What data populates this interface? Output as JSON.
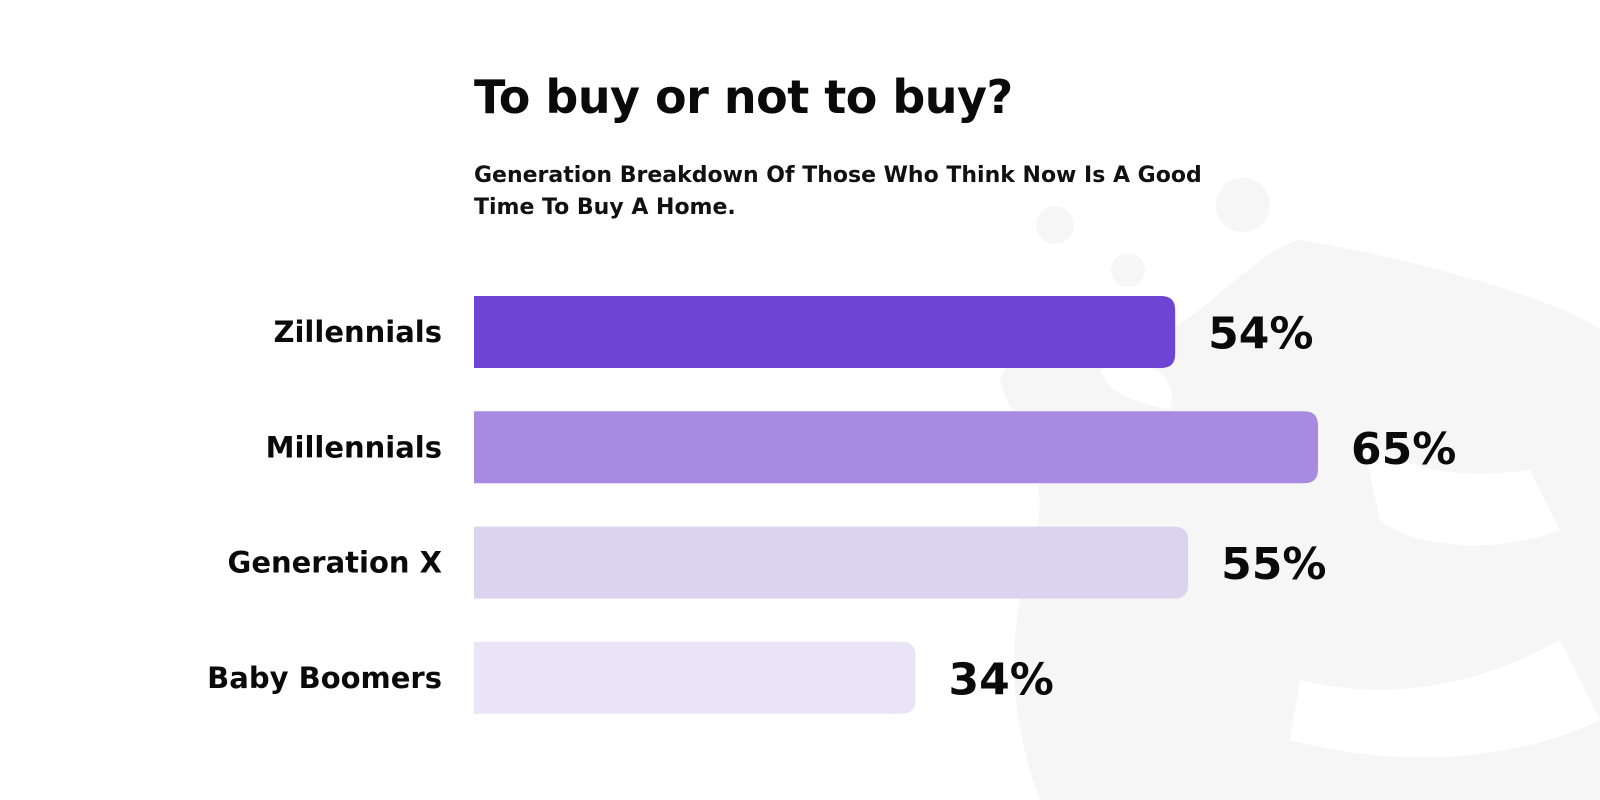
{
  "header": {
    "title": "To buy or not to buy?",
    "subtitle": "Generation Breakdown Of Those Who Think Now Is A Good Time To Buy A Home."
  },
  "chart_data": {
    "type": "bar",
    "orientation": "horizontal",
    "title": "To buy or not to buy?",
    "subtitle": "Generation Breakdown Of Those Who Think Now Is A Good Time To Buy A Home.",
    "categories": [
      "Zillennials",
      "Millennials",
      "Generation X",
      "Baby Boomers"
    ],
    "values": [
      54,
      65,
      55,
      34
    ],
    "value_labels": [
      "54%",
      "65%",
      "55%",
      "34%"
    ],
    "unit": "%",
    "colors": [
      "#6e44d4",
      "#a68be0",
      "#dcd3ef",
      "#e9e4f6"
    ],
    "xlim": [
      0,
      65
    ],
    "grid": false,
    "legend": "none",
    "xlabel": "",
    "ylabel": ""
  },
  "colors": {
    "background": "#ffffff",
    "text": "#0a0a0a",
    "watermark": "#f6f6f7"
  }
}
